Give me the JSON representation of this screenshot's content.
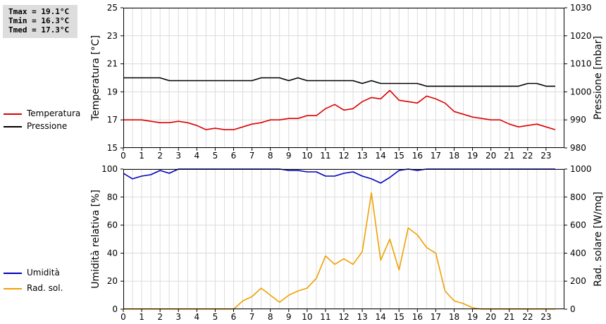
{
  "stats": {
    "tmax": "Tmax = 19.1°C",
    "tmin": "Tmin = 16.3°C",
    "tmed": "Tmed = 17.3°C"
  },
  "legend_top": [
    {
      "label": "Temperatura",
      "color": "#dd0000"
    },
    {
      "label": "Pressione",
      "color": "#000000"
    }
  ],
  "legend_bottom": [
    {
      "label": "Umidità",
      "color": "#0000bb"
    },
    {
      "label": "Rad. sol.",
      "color": "#f0a000"
    }
  ],
  "chart_data": [
    {
      "type": "line",
      "x_ticks": [
        "0",
        "1",
        "2",
        "3",
        "4",
        "5",
        "6",
        "7",
        "8",
        "9",
        "10",
        "11",
        "12",
        "13",
        "14",
        "15",
        "16",
        "17",
        "18",
        "19",
        "20",
        "21",
        "22",
        "23"
      ],
      "xlim": [
        0,
        24
      ],
      "ylabel": "Temperatura [°C]",
      "ylim": [
        15,
        25
      ],
      "yticks": [
        "15",
        "17",
        "19",
        "21",
        "23",
        "25"
      ],
      "ylabel_right": "Pressione [mbar]",
      "ylim_right": [
        980,
        1030
      ],
      "yticks_right": [
        "980",
        "990",
        "1000",
        "1010",
        "1020",
        "1030"
      ],
      "grid": true,
      "series": [
        {
          "name": "Temperatura",
          "axis": "left",
          "color": "#dd0000",
          "x": [
            0,
            0.5,
            1,
            1.5,
            2,
            2.5,
            3,
            3.5,
            4,
            4.5,
            5,
            5.5,
            6,
            6.5,
            7,
            7.5,
            8,
            8.5,
            9,
            9.5,
            10,
            10.5,
            11,
            11.5,
            12,
            12.5,
            13,
            13.5,
            14,
            14.5,
            15,
            15.5,
            16,
            16.5,
            17,
            17.5,
            18,
            18.5,
            19,
            19.5,
            20,
            20.5,
            21,
            21.5,
            22,
            22.5,
            23,
            23.5
          ],
          "values": [
            17.0,
            17.0,
            17.0,
            16.9,
            16.8,
            16.8,
            16.9,
            16.8,
            16.6,
            16.3,
            16.4,
            16.3,
            16.3,
            16.5,
            16.7,
            16.8,
            17.0,
            17.0,
            17.1,
            17.1,
            17.3,
            17.3,
            17.8,
            18.1,
            17.7,
            17.8,
            18.3,
            18.6,
            18.5,
            19.1,
            18.4,
            18.3,
            18.2,
            18.7,
            18.5,
            18.2,
            17.6,
            17.4,
            17.2,
            17.1,
            17.0,
            17.0,
            16.7,
            16.5,
            16.6,
            16.7,
            16.5,
            16.3
          ]
        },
        {
          "name": "Pressione",
          "axis": "right",
          "color": "#000000",
          "x": [
            0,
            0.5,
            1,
            1.5,
            2,
            2.5,
            3,
            3.5,
            4,
            4.5,
            5,
            5.5,
            6,
            6.5,
            7,
            7.5,
            8,
            8.5,
            9,
            9.5,
            10,
            10.5,
            11,
            11.5,
            12,
            12.5,
            13,
            13.5,
            14,
            14.5,
            15,
            15.5,
            16,
            16.5,
            17,
            17.5,
            18,
            18.5,
            19,
            19.5,
            20,
            20.5,
            21,
            21.5,
            22,
            22.5,
            23,
            23.5
          ],
          "values": [
            1005,
            1005,
            1005,
            1005,
            1005,
            1004,
            1004,
            1004,
            1004,
            1004,
            1004,
            1004,
            1004,
            1004,
            1004,
            1005,
            1005,
            1005,
            1004,
            1005,
            1004,
            1004,
            1004,
            1004,
            1004,
            1004,
            1003,
            1004,
            1003,
            1003,
            1003,
            1003,
            1003,
            1002,
            1002,
            1002,
            1002,
            1002,
            1002,
            1002,
            1002,
            1002,
            1002,
            1002,
            1003,
            1003,
            1002,
            1002
          ]
        }
      ]
    },
    {
      "type": "line",
      "x_ticks": [
        "0",
        "1",
        "2",
        "3",
        "4",
        "5",
        "6",
        "7",
        "8",
        "9",
        "10",
        "11",
        "12",
        "13",
        "14",
        "15",
        "16",
        "17",
        "18",
        "19",
        "20",
        "21",
        "22",
        "23"
      ],
      "xlim": [
        0,
        24
      ],
      "ylabel": "Umidità relativa [%]",
      "ylim": [
        0,
        100
      ],
      "yticks": [
        "0",
        "20",
        "40",
        "60",
        "80",
        "100"
      ],
      "ylabel_right": "Rad. solare [W/mq]",
      "ylim_right": [
        0,
        1000
      ],
      "yticks_right": [
        "0",
        "200",
        "400",
        "600",
        "800",
        "1000"
      ],
      "grid": true,
      "series": [
        {
          "name": "Umidità",
          "axis": "left",
          "color": "#0000bb",
          "x": [
            0,
            0.5,
            1,
            1.5,
            2,
            2.5,
            3,
            3.5,
            4,
            4.5,
            5,
            5.5,
            6,
            6.5,
            7,
            7.5,
            8,
            8.5,
            9,
            9.5,
            10,
            10.5,
            11,
            11.5,
            12,
            12.5,
            13,
            13.5,
            14,
            14.5,
            15,
            15.5,
            16,
            16.5,
            17,
            17.5,
            18,
            18.5,
            19,
            19.5,
            20,
            20.5,
            21,
            21.5,
            22,
            22.5,
            23,
            23.5
          ],
          "values": [
            97,
            93,
            95,
            96,
            99,
            97,
            100,
            100,
            100,
            100,
            100,
            100,
            100,
            100,
            100,
            100,
            100,
            100,
            99,
            99,
            98,
            98,
            95,
            95,
            97,
            98,
            95,
            93,
            90,
            94,
            99,
            100,
            99,
            100,
            100,
            100,
            100,
            100,
            100,
            100,
            100,
            100,
            100,
            100,
            100,
            100,
            100,
            100
          ]
        },
        {
          "name": "Rad. sol.",
          "axis": "right",
          "color": "#f0a000",
          "x": [
            0,
            0.5,
            1,
            1.5,
            2,
            2.5,
            3,
            3.5,
            4,
            4.5,
            5,
            5.5,
            6,
            6.5,
            7,
            7.5,
            8,
            8.5,
            9,
            9.5,
            10,
            10.5,
            11,
            11.5,
            12,
            12.5,
            13,
            13.5,
            14,
            14.5,
            15,
            15.5,
            16,
            16.5,
            17,
            17.5,
            18,
            18.5,
            19,
            19.5,
            20,
            20.5,
            21,
            21.5,
            22,
            22.5,
            23,
            23.5
          ],
          "values": [
            0,
            0,
            0,
            0,
            0,
            0,
            0,
            0,
            0,
            0,
            0,
            0,
            0,
            60,
            90,
            150,
            100,
            50,
            100,
            130,
            150,
            220,
            380,
            320,
            360,
            320,
            410,
            830,
            350,
            500,
            280,
            580,
            530,
            440,
            400,
            130,
            60,
            40,
            10,
            0,
            0,
            0,
            0,
            0,
            0,
            0,
            0,
            0
          ]
        }
      ]
    }
  ]
}
